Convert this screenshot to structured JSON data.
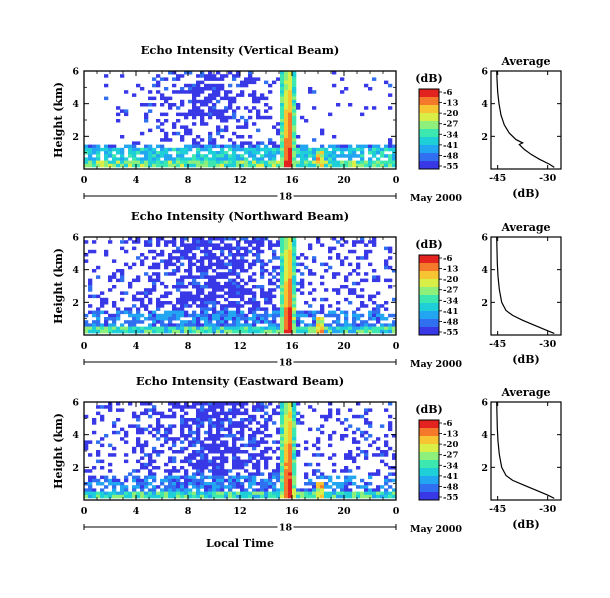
{
  "chart_data": [
    {
      "type": "heatmap",
      "title": "Echo Intensity (Vertical Beam)",
      "ylabel": "Height (km)",
      "x_ticks": [
        "0",
        "4",
        "8",
        "12",
        "16",
        "20",
        "0"
      ],
      "y_ticks": [
        "2",
        "4",
        "6"
      ],
      "xlim": [
        0,
        24
      ],
      "ylim": [
        0,
        6
      ],
      "day_label": "18",
      "date_label": "May 2000",
      "colorbar": {
        "title": "(dB)",
        "ticks": [
          "-6",
          "-13",
          "-20",
          "-27",
          "-34",
          "-41",
          "-48",
          "-55"
        ],
        "range": [
          -55,
          -6
        ]
      },
      "notable_features": {
        "intense_echo_time_h": 15.8,
        "secondary_echo_time_h": 18.3
      },
      "profile": {
        "title": "Average",
        "xlabel": "(dB)",
        "x_ticks": [
          "-45",
          "-30"
        ],
        "y_ticks": [
          "2",
          "4",
          "6"
        ],
        "xlim": [
          -47,
          -26
        ],
        "ylim": [
          0,
          6
        ],
        "points": [
          [
            -28.0,
            0.1
          ],
          [
            -29.5,
            0.3
          ],
          [
            -32.5,
            0.6
          ],
          [
            -35.0,
            0.9
          ],
          [
            -37.0,
            1.2
          ],
          [
            -38.5,
            1.5
          ],
          [
            -37.5,
            1.6
          ],
          [
            -39.5,
            1.8
          ],
          [
            -41.5,
            2.2
          ],
          [
            -43.0,
            2.7
          ],
          [
            -44.0,
            3.3
          ],
          [
            -44.6,
            4.0
          ],
          [
            -45.0,
            4.7
          ],
          [
            -45.2,
            5.5
          ],
          [
            -45.3,
            6.0
          ]
        ]
      }
    },
    {
      "type": "heatmap",
      "title": "Echo Intensity (Northward Beam)",
      "ylabel": "Height (km)",
      "x_ticks": [
        "0",
        "4",
        "8",
        "12",
        "16",
        "20",
        "0"
      ],
      "y_ticks": [
        "2",
        "4",
        "6"
      ],
      "xlim": [
        0,
        24
      ],
      "ylim": [
        0,
        6
      ],
      "day_label": "18",
      "date_label": "May 2000",
      "colorbar": {
        "title": "(dB)",
        "ticks": [
          "-6",
          "-13",
          "-20",
          "-27",
          "-34",
          "-41",
          "-48",
          "-55"
        ],
        "range": [
          -55,
          -6
        ]
      },
      "notable_features": {
        "intense_echo_time_h": 15.8,
        "secondary_echo_time_h": 18.3
      },
      "profile": {
        "title": "Average",
        "xlabel": "(dB)",
        "x_ticks": [
          "-45",
          "-30"
        ],
        "y_ticks": [
          "2",
          "4",
          "6"
        ],
        "xlim": [
          -47,
          -26
        ],
        "ylim": [
          0,
          6
        ],
        "points": [
          [
            -28.0,
            0.1
          ],
          [
            -30.5,
            0.3
          ],
          [
            -34.0,
            0.6
          ],
          [
            -37.5,
            0.9
          ],
          [
            -40.5,
            1.2
          ],
          [
            -42.5,
            1.5
          ],
          [
            -43.8,
            2.0
          ],
          [
            -44.5,
            2.8
          ],
          [
            -44.9,
            3.6
          ],
          [
            -45.1,
            4.4
          ],
          [
            -45.2,
            5.2
          ],
          [
            -45.3,
            6.0
          ]
        ]
      }
    },
    {
      "type": "heatmap",
      "title": "Echo Intensity (Eastward Beam)",
      "ylabel": "Height (km)",
      "xlabel": "Local Time",
      "x_ticks": [
        "0",
        "4",
        "8",
        "12",
        "16",
        "20",
        "0"
      ],
      "y_ticks": [
        "2",
        "4",
        "6"
      ],
      "xlim": [
        0,
        24
      ],
      "ylim": [
        0,
        6
      ],
      "day_label": "18",
      "date_label": "May 2000",
      "colorbar": {
        "title": "(dB)",
        "ticks": [
          "-6",
          "-13",
          "-20",
          "-27",
          "-34",
          "-41",
          "-48",
          "-55"
        ],
        "range": [
          -55,
          -6
        ]
      },
      "notable_features": {
        "intense_echo_time_h": 15.8,
        "secondary_echo_time_h": 18.3
      },
      "profile": {
        "title": "Average",
        "xlabel": "(dB)",
        "x_ticks": [
          "-45",
          "-30"
        ],
        "y_ticks": [
          "2",
          "4",
          "6"
        ],
        "xlim": [
          -47,
          -26
        ],
        "ylim": [
          0,
          6
        ],
        "points": [
          [
            -28.0,
            0.1
          ],
          [
            -30.0,
            0.3
          ],
          [
            -33.5,
            0.6
          ],
          [
            -37.0,
            0.9
          ],
          [
            -40.5,
            1.2
          ],
          [
            -42.5,
            1.5
          ],
          [
            -43.8,
            2.0
          ],
          [
            -44.5,
            2.8
          ],
          [
            -44.9,
            3.6
          ],
          [
            -45.1,
            4.4
          ],
          [
            -45.2,
            5.2
          ],
          [
            -45.3,
            6.0
          ]
        ]
      }
    }
  ]
}
